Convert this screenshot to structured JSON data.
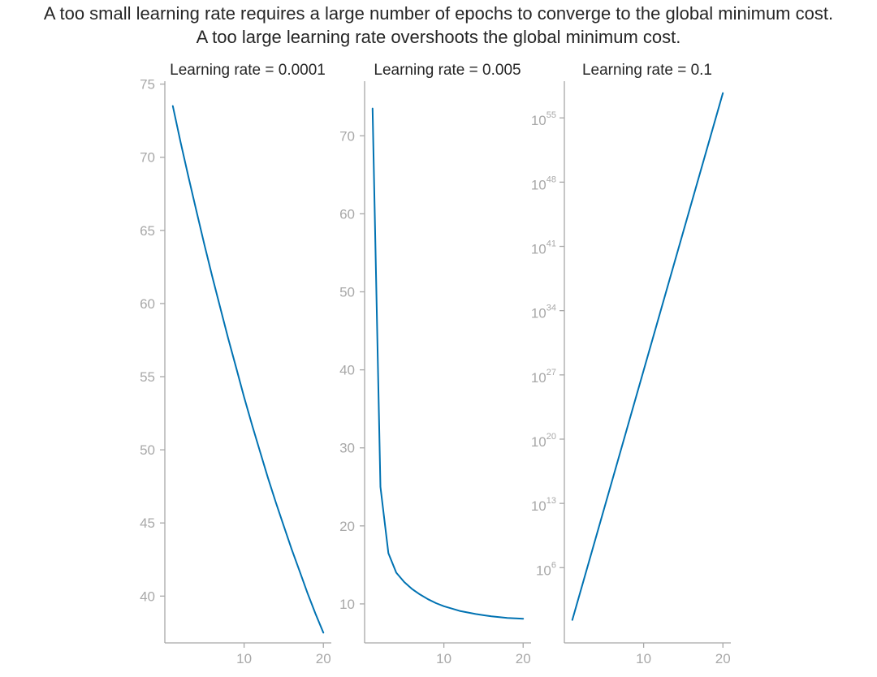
{
  "figure": {
    "suptitle_lines": [
      "A too small learning rate requires a large number of epochs to converge to the global minimum cost.",
      "A too large learning rate overshoots the global minimum cost."
    ],
    "colors": {
      "line": "#0072B2",
      "axis": "#a8a8a8",
      "text": "#262626"
    }
  },
  "chart_data": [
    {
      "type": "line",
      "title": "Learning rate = 0.0001",
      "xlabel": "",
      "ylabel": "",
      "y_scale": "linear",
      "xlim": [
        0,
        21
      ],
      "ylim": [
        36.8,
        75.2
      ],
      "x_ticks": [
        10,
        20
      ],
      "y_ticks": [
        40,
        45,
        50,
        55,
        60,
        65,
        70,
        75
      ],
      "series": [
        {
          "x": [
            1,
            2,
            3,
            4,
            5,
            6,
            7,
            8,
            9,
            10,
            11,
            12,
            13,
            14,
            15,
            16,
            17,
            18,
            19,
            20
          ],
          "y": [
            73.5,
            71.0,
            68.6,
            66.3,
            64.0,
            61.8,
            59.7,
            57.6,
            55.6,
            53.6,
            51.7,
            49.9,
            48.1,
            46.4,
            44.8,
            43.2,
            41.7,
            40.2,
            38.8,
            37.5
          ]
        }
      ]
    },
    {
      "type": "line",
      "title": "Learning rate = 0.005",
      "xlabel": "",
      "ylabel": "",
      "y_scale": "linear",
      "xlim": [
        0,
        21
      ],
      "ylim": [
        5,
        77
      ],
      "x_ticks": [
        10,
        20
      ],
      "y_ticks": [
        10,
        20,
        30,
        40,
        50,
        60,
        70
      ],
      "series": [
        {
          "x": [
            1,
            2,
            3,
            4,
            5,
            6,
            7,
            8,
            9,
            10,
            11,
            12,
            13,
            14,
            15,
            16,
            17,
            18,
            19,
            20
          ],
          "y": [
            73.5,
            25.0,
            16.5,
            14.0,
            12.8,
            11.9,
            11.2,
            10.6,
            10.1,
            9.7,
            9.4,
            9.1,
            8.9,
            8.7,
            8.55,
            8.4,
            8.3,
            8.2,
            8.15,
            8.1
          ]
        }
      ]
    },
    {
      "type": "line",
      "title": "Learning rate = 0.1",
      "xlabel": "",
      "ylabel": "",
      "y_scale": "log",
      "xlim": [
        0,
        21
      ],
      "ylim_exponent": [
        -2.2,
        59
      ],
      "x_ticks": [
        10,
        20
      ],
      "y_tick_exponents": [
        6,
        13,
        20,
        27,
        34,
        41,
        48,
        55
      ],
      "y_tick_base": "10",
      "series": [
        {
          "x": [
            1,
            20
          ],
          "y_exponent": [
            0.3,
            57.7
          ]
        }
      ]
    }
  ]
}
